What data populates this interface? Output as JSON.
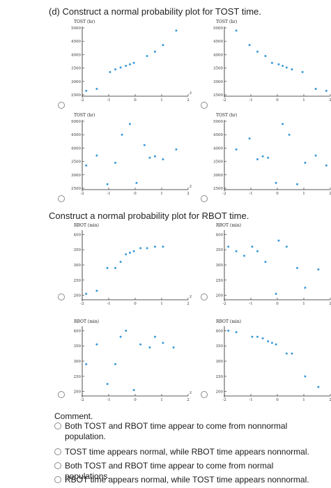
{
  "sections": {
    "tost_heading": "(d) Construct a normal probability plot for TOST time.",
    "rbot_heading": "Construct a normal probability plot for RBOT time."
  },
  "comment": {
    "title": "Comment.",
    "options": [
      "Both TOST and RBOT time appear to come from nonnormal population.",
      "TOST time appears normal, while RBOT time appears nonnormal.",
      "Both TOST and RBOT time appear to come from normal populations.",
      "RBOT time appears normal, while TOST time appears nonnormal."
    ]
  },
  "colors": {
    "points": "#3a9ad9",
    "radio_border": "#8a8a8a"
  },
  "chart_data": [
    {
      "type": "scatter",
      "group": "TOST",
      "ylabel": "TOST (hr)",
      "xlabel": "z",
      "ylim": [
        2500,
        5000
      ],
      "xlim": [
        -2,
        2
      ],
      "yticks": [
        "2500",
        "3000",
        "3500",
        "4000",
        "4500",
        "5000"
      ],
      "xticks": [
        "-2",
        "-1",
        "0",
        "1",
        "2"
      ],
      "x": [
        -1.85,
        -1.45,
        -0.95,
        -0.75,
        -0.55,
        -0.35,
        -0.2,
        -0.05,
        0.45,
        0.75,
        1.05,
        1.55
      ],
      "y": [
        2650,
        2720,
        3350,
        3450,
        3520,
        3580,
        3640,
        3690,
        3950,
        4110,
        4360,
        4900
      ]
    },
    {
      "type": "scatter",
      "group": "TOST",
      "ylabel": "TOST (hr)",
      "xlabel": "z",
      "ylim": [
        2500,
        5000
      ],
      "xlim": [
        -2,
        2
      ],
      "yticks": [
        "2500",
        "3000",
        "3500",
        "4000",
        "4500",
        "5000"
      ],
      "xticks": [
        "-2",
        "-1",
        "0",
        "1",
        "2"
      ],
      "x": [
        -1.55,
        -1.05,
        -0.75,
        -0.45,
        -0.2,
        0.05,
        0.2,
        0.35,
        0.55,
        0.95,
        1.45,
        1.85
      ],
      "y": [
        4900,
        4360,
        4110,
        3950,
        3690,
        3640,
        3580,
        3520,
        3450,
        3350,
        2720,
        2650
      ]
    },
    {
      "type": "scatter",
      "group": "TOST",
      "ylabel": "TOST (hr)",
      "xlabel": "z",
      "ylim": [
        2500,
        5000
      ],
      "xlim": [
        -2,
        2
      ],
      "yticks": [
        "2500",
        "3000",
        "3500",
        "4000",
        "4500",
        "5000"
      ],
      "xticks": [
        "-2",
        "-1",
        "0",
        "1",
        "2"
      ],
      "x": [
        -1.85,
        -1.45,
        -1.05,
        -0.75,
        -0.5,
        -0.2,
        0.05,
        0.35,
        0.55,
        0.75,
        1.05,
        1.55
      ],
      "y": [
        3350,
        3720,
        2650,
        3450,
        4500,
        4900,
        2700,
        4110,
        3640,
        3690,
        3580,
        3950
      ]
    },
    {
      "type": "scatter",
      "group": "TOST",
      "ylabel": "TOST (hr)",
      "xlabel": "z",
      "ylim": [
        2500,
        5000
      ],
      "xlim": [
        -2,
        2
      ],
      "yticks": [
        "2500",
        "3000",
        "3500",
        "4000",
        "4500",
        "5000"
      ],
      "xticks": [
        "-2",
        "-1",
        "0",
        "1",
        "2"
      ],
      "x": [
        -1.55,
        -1.05,
        -0.75,
        -0.55,
        -0.35,
        -0.05,
        0.2,
        0.45,
        0.75,
        1.05,
        1.45,
        1.85
      ],
      "y": [
        3950,
        4360,
        3580,
        3690,
        3640,
        2700,
        4900,
        4500,
        2650,
        3450,
        3720,
        3350
      ]
    },
    {
      "type": "scatter",
      "group": "RBOT",
      "ylabel": "RBOT (min)",
      "xlabel": "z",
      "ylim": [
        190,
        410
      ],
      "xlim": [
        -2,
        2
      ],
      "yticks": [
        "200",
        "250",
        "300",
        "350",
        "400"
      ],
      "xticks": [
        "-2",
        "-1",
        "0",
        "1",
        "2"
      ],
      "x": [
        -1.85,
        -1.45,
        -1.05,
        -0.75,
        -0.55,
        -0.35,
        -0.2,
        -0.05,
        0.2,
        0.45,
        0.75,
        1.05
      ],
      "y": [
        205,
        215,
        290,
        290,
        310,
        335,
        340,
        345,
        355,
        355,
        360,
        360
      ]
    },
    {
      "type": "scatter",
      "group": "RBOT",
      "ylabel": "RBOT (min)",
      "xlabel": "z",
      "ylim": [
        190,
        410
      ],
      "xlim": [
        -2,
        2
      ],
      "yticks": [
        "200",
        "250",
        "300",
        "350",
        "400"
      ],
      "xticks": [
        "-2",
        "-1",
        "0",
        "1",
        "2"
      ],
      "x": [
        -1.85,
        -1.55,
        -1.25,
        -0.95,
        -0.75,
        -0.45,
        -0.05,
        0.05,
        0.35,
        0.75,
        1.05,
        1.55
      ],
      "y": [
        360,
        345,
        330,
        360,
        345,
        310,
        205,
        380,
        360,
        290,
        225,
        285
      ]
    },
    {
      "type": "scatter",
      "group": "RBOT",
      "ylabel": "RBOT (min)",
      "xlabel": "z",
      "ylim": [
        190,
        410
      ],
      "xlim": [
        -2,
        2
      ],
      "yticks": [
        "200",
        "250",
        "300",
        "350",
        "400"
      ],
      "xticks": [
        "-2",
        "-1",
        "0",
        "1",
        "2"
      ],
      "x": [
        -1.85,
        -1.45,
        -1.05,
        -0.75,
        -0.55,
        -0.35,
        -0.05,
        0.2,
        0.55,
        0.75,
        1.05,
        1.45
      ],
      "y": [
        290,
        355,
        225,
        290,
        380,
        400,
        205,
        355,
        345,
        380,
        360,
        345
      ]
    },
    {
      "type": "scatter",
      "group": "RBOT",
      "ylabel": "RBOT (min)",
      "xlabel": "z",
      "ylim": [
        190,
        410
      ],
      "xlim": [
        -2,
        2
      ],
      "yticks": [
        "200",
        "250",
        "300",
        "350",
        "400"
      ],
      "xticks": [
        "-2",
        "-1",
        "0",
        "1",
        "2"
      ],
      "x": [
        -1.85,
        -1.55,
        -0.95,
        -0.75,
        -0.55,
        -0.35,
        -0.2,
        -0.05,
        0.35,
        0.55,
        1.05,
        1.55
      ],
      "y": [
        400,
        395,
        380,
        380,
        375,
        365,
        360,
        355,
        325,
        325,
        250,
        215
      ]
    }
  ]
}
